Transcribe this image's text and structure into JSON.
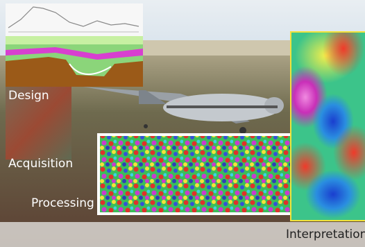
{
  "labels": {
    "design": "Design",
    "acquisition": "Acquisition",
    "processing": "Processing",
    "interpretation": "Interpretation"
  }
}
